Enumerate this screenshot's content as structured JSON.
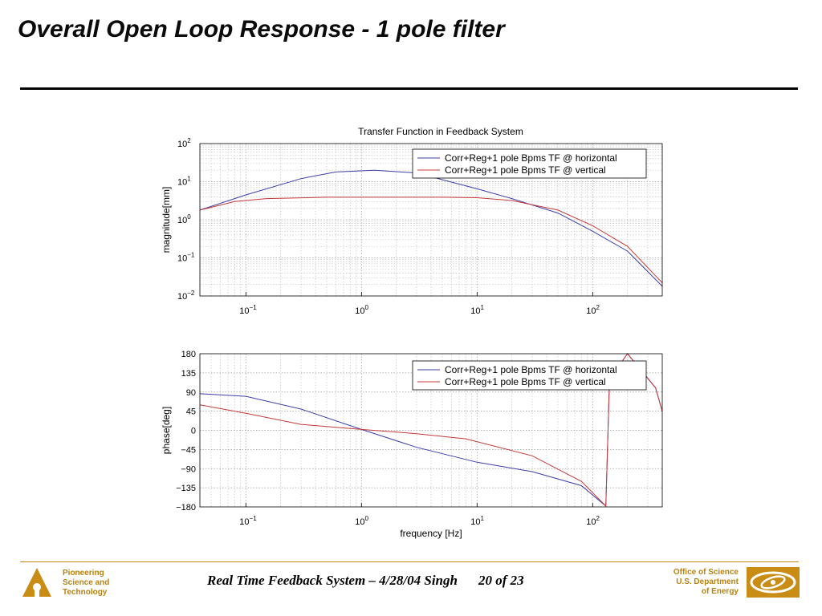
{
  "slide": {
    "title": "Overall Open Loop Response - 1 pole filter"
  },
  "footer": {
    "left_lines": [
      "Pioneering",
      "Science and",
      "Technology"
    ],
    "center_text": "Real Time Feedback System – 4/28/04 Singh",
    "page": "20 of 23",
    "right_lines": [
      "Office of Science",
      "U.S. Department",
      "of Energy"
    ],
    "accent_color": "#b8820f"
  },
  "chart_data": [
    {
      "type": "line",
      "title": "Transfer Function in Feedback System",
      "xlabel": "",
      "ylabel": "magnitude[mm]",
      "xscale": "log",
      "yscale": "log",
      "xlim": [
        0.04,
        400
      ],
      "ylim": [
        0.01,
        100
      ],
      "x_ticks": [
        "10^-1",
        "10^0",
        "10^1",
        "10^2"
      ],
      "y_ticks": [
        "10^-2",
        "10^-1",
        "10^0",
        "10^1",
        "10^2"
      ],
      "grid": true,
      "legend": "top-right",
      "series": [
        {
          "name": "Corr+Reg+1 pole Bpms TF @ horizontal",
          "color": "#3b3fa6",
          "points": [
            [
              0.04,
              1.8
            ],
            [
              0.1,
              4.5
            ],
            [
              0.3,
              12
            ],
            [
              0.6,
              18
            ],
            [
              1.3,
              20
            ],
            [
              3,
              17
            ],
            [
              10,
              6.5
            ],
            [
              20,
              3.6
            ],
            [
              50,
              1.5
            ],
            [
              100,
              0.5
            ],
            [
              200,
              0.15
            ],
            [
              400,
              0.018
            ]
          ]
        },
        {
          "name": "Corr+Reg+1 pole Bpms TF @ vertical",
          "color": "#c43a3a",
          "points": [
            [
              0.04,
              1.8
            ],
            [
              0.08,
              3
            ],
            [
              0.15,
              3.6
            ],
            [
              0.5,
              3.9
            ],
            [
              1,
              3.9
            ],
            [
              5,
              3.9
            ],
            [
              10,
              3.8
            ],
            [
              20,
              3.2
            ],
            [
              50,
              1.8
            ],
            [
              100,
              0.7
            ],
            [
              200,
              0.2
            ],
            [
              400,
              0.022
            ]
          ]
        }
      ]
    },
    {
      "type": "line",
      "title": "",
      "xlabel": "frequency [Hz]",
      "ylabel": "phase[deg]",
      "xscale": "log",
      "yscale": "linear",
      "xlim": [
        0.04,
        400
      ],
      "ylim": [
        -180,
        180
      ],
      "x_ticks": [
        "10^-1",
        "10^0",
        "10^1",
        "10^2"
      ],
      "y_ticks": [
        "180",
        "135",
        "90",
        "45",
        "0",
        "−45",
        "−90",
        "−135",
        "−180"
      ],
      "grid": true,
      "legend": "top-right",
      "series": [
        {
          "name": "Corr+Reg+1 pole Bpms TF @ horizontal",
          "color": "#3b3fa6",
          "points": [
            [
              0.04,
              86
            ],
            [
              0.1,
              80
            ],
            [
              0.3,
              50
            ],
            [
              1,
              2
            ],
            [
              3,
              -40
            ],
            [
              10,
              -75
            ],
            [
              30,
              -97
            ],
            [
              80,
              -130
            ],
            [
              130,
              -178
            ],
            [
              140,
              120
            ],
            [
              200,
              180
            ],
            [
              350,
              100
            ],
            [
              400,
              45
            ]
          ]
        },
        {
          "name": "Corr+Reg+1 pole Bpms TF @ vertical",
          "color": "#c43a3a",
          "points": [
            [
              0.04,
              60
            ],
            [
              0.1,
              40
            ],
            [
              0.3,
              14
            ],
            [
              1,
              2
            ],
            [
              3,
              -8
            ],
            [
              8,
              -20
            ],
            [
              30,
              -60
            ],
            [
              80,
              -120
            ],
            [
              130,
              -178
            ],
            [
              140,
              120
            ],
            [
              200,
              180
            ],
            [
              350,
              100
            ],
            [
              400,
              45
            ]
          ]
        }
      ]
    }
  ]
}
